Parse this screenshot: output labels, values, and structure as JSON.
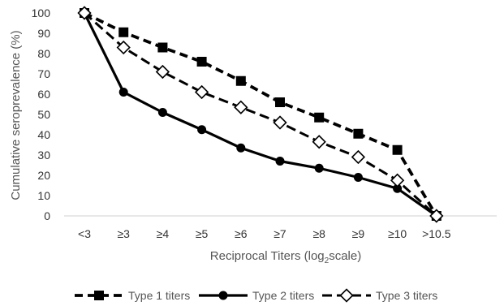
{
  "chart_data": {
    "type": "line",
    "title": "",
    "xlabel_main": "Reciprocal Titers (log",
    "xlabel_sub": "2",
    "xlabel_end": "scale)",
    "ylabel": "Cumulative seroprevalence (%)",
    "ylim": [
      0,
      100
    ],
    "ytick_step": 10,
    "grid": false,
    "legend_position": "bottom",
    "categories": [
      "<3",
      "≥3",
      "≥4",
      "≥5",
      "≥6",
      "≥7",
      "≥8",
      "≥9",
      "≥10",
      ">10.5"
    ],
    "series": [
      {
        "name": "Type 1 titers",
        "line": "dashed",
        "marker": "filled-square",
        "values": [
          100,
          90.5,
          83,
          76,
          66.5,
          56,
          48.5,
          40.5,
          32.5,
          0
        ]
      },
      {
        "name": "Type 2 titers",
        "line": "solid",
        "marker": "filled-circle",
        "values": [
          100,
          61,
          51,
          42.5,
          33.5,
          27,
          23.5,
          19,
          13.5,
          0
        ]
      },
      {
        "name": "Type 3 titers",
        "line": "dashed",
        "marker": "open-diamond",
        "values": [
          100,
          83,
          71,
          61,
          53.5,
          46,
          36.5,
          29,
          17.5,
          0
        ]
      }
    ]
  }
}
